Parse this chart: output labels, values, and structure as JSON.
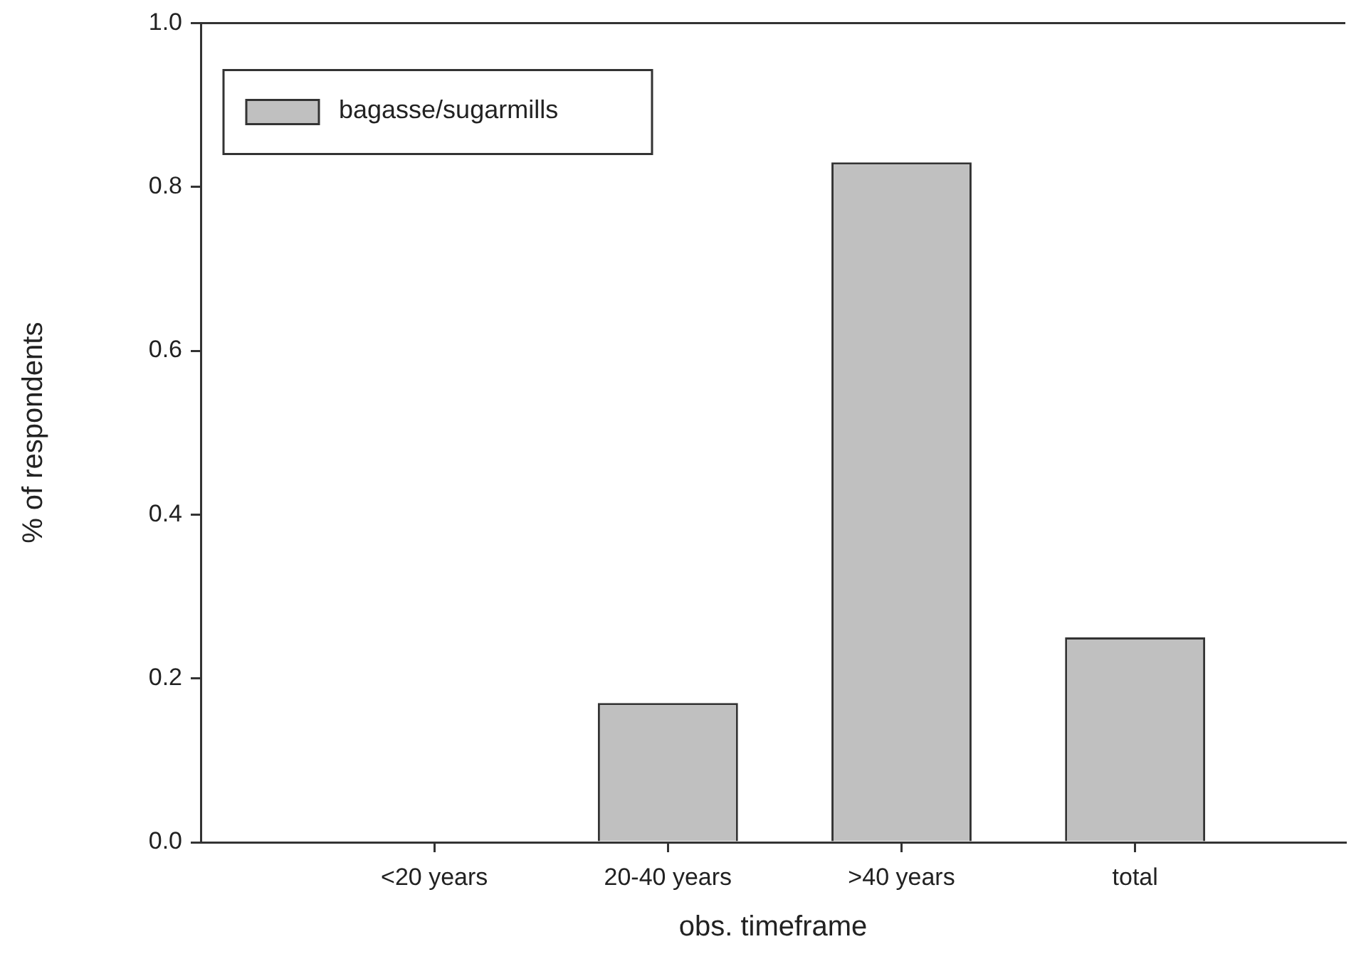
{
  "chart_data": {
    "type": "bar",
    "xlabel": "obs. timeframe",
    "ylabel": "% of respondents",
    "categories": [
      "<20 years",
      "20-40 years",
      ">40 years",
      "total"
    ],
    "series": [
      {
        "name": "bagasse/sugarmills",
        "color": "#c0c0c0",
        "values": [
          0,
          0.17,
          0.83,
          0.25
        ]
      }
    ],
    "ylim": [
      0,
      1
    ],
    "yticks": [
      {
        "value": 0,
        "label": "0.0"
      },
      0.2,
      0.4,
      0.6,
      0.8,
      {
        "value": 1,
        "label": "1.0"
      }
    ],
    "legend": "top left"
  }
}
